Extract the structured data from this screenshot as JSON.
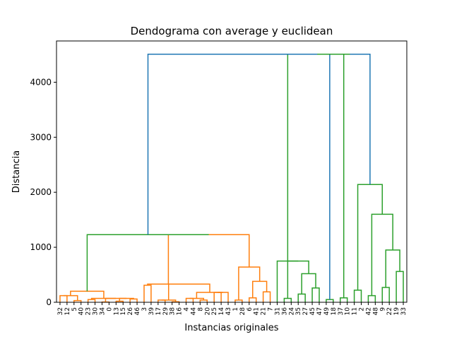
{
  "chart_data": {
    "type": "dendrogram",
    "title": "Dendograma con average y euclidean",
    "xlabel": "Instancias originales",
    "ylabel": "Distancia",
    "ylim": [
      0,
      4750
    ],
    "yticks": [
      0,
      1000,
      2000,
      3000,
      4000
    ],
    "leaves": [
      "32",
      "12",
      "5",
      "40",
      "23",
      "30",
      "34",
      "0",
      "13",
      "15",
      "26",
      "46",
      "3",
      "39",
      "17",
      "29",
      "38",
      "16",
      "4",
      "44",
      "8",
      "20",
      "25",
      "14",
      "43",
      "1",
      "28",
      "6",
      "41",
      "21",
      "7",
      "31",
      "36",
      "24",
      "35",
      "27",
      "45",
      "47",
      "49",
      "18",
      "37",
      "10",
      "11",
      "2",
      "42",
      "48",
      "9",
      "22",
      "19",
      "33"
    ],
    "colors": {
      "cluster_1": "#ff7f0e",
      "cluster_2": "#2ca02c",
      "root": "#1f77b4"
    },
    "links": [
      {
        "l": 0,
        "r": 1,
        "h": 120,
        "c": "cluster_1"
      },
      {
        "l": 2,
        "r": 3,
        "h": 30,
        "c": "cluster_1"
      },
      {
        "l": "A1",
        "r": "A2",
        "h": 60,
        "c": "cluster_1"
      },
      {
        "l": "A3",
        "r": "A4",
        "h": 50,
        "c": "cluster_1"
      },
      {
        "l": "A5",
        "r": "A6",
        "h": 5,
        "c": "cluster_1"
      },
      {
        "l": "A7",
        "r": "A8",
        "h": 20,
        "c": "cluster_1"
      },
      {
        "l": "A9",
        "r": "A10",
        "h": 60,
        "c": "cluster_1"
      },
      {
        "l": "A11",
        "r": "A12",
        "h": 70,
        "c": "cluster_1"
      },
      {
        "l": "A13",
        "r": "A14",
        "h": 30,
        "c": "cluster_1"
      },
      {
        "l": "A15",
        "r": "A16",
        "h": 10,
        "c": "cluster_1"
      },
      {
        "l": "A17",
        "r": "A18",
        "h": 200,
        "c": "cluster_1"
      },
      {
        "l": "A19",
        "r": "A20",
        "h": 310,
        "c": "cluster_1"
      },
      {
        "l": "B1",
        "r": "B2",
        "h": 40,
        "c": "cluster_1"
      },
      {
        "l": "B3",
        "r": "B4",
        "h": 10,
        "c": "cluster_1"
      },
      {
        "l": "B5",
        "r": "B6",
        "h": 5,
        "c": "cluster_1"
      },
      {
        "l": "B7",
        "r": "B8",
        "h": 70,
        "c": "cluster_1"
      },
      {
        "l": "B9",
        "r": "B10",
        "h": 40,
        "c": "cluster_1"
      },
      {
        "l": "B11",
        "r": "B12",
        "h": 60,
        "c": "cluster_1"
      },
      {
        "l": "B13",
        "r": "B14",
        "h": 180,
        "c": "cluster_1"
      },
      {
        "l": "B15",
        "r": "B16",
        "h": 100,
        "c": "cluster_1"
      },
      {
        "l": "B17",
        "r": "B18",
        "h": 30,
        "c": "cluster_1"
      },
      {
        "l": "B19",
        "r": "B20",
        "h": 330,
        "c": "cluster_1"
      },
      {
        "l": "C1",
        "r": "C2",
        "h": 110,
        "c": "cluster_1"
      },
      {
        "l": "C3",
        "r": "C4",
        "h": 40,
        "c": "cluster_1"
      },
      {
        "l": "C5",
        "r": "C6",
        "h": 80,
        "c": "cluster_1"
      },
      {
        "l": "C7",
        "r": "C8",
        "h": 190,
        "c": "cluster_1"
      },
      {
        "l": "C9",
        "r": "C10",
        "h": 380,
        "c": "cluster_1"
      },
      {
        "l": "C11",
        "r": "C12",
        "h": 640,
        "c": "cluster_1"
      },
      {
        "l": "C13",
        "r": "C14",
        "h": 1230,
        "c": "cluster_1"
      },
      {
        "l": "D1",
        "r": "D2",
        "h": 240,
        "c": "cluster_2"
      },
      {
        "l": "D3",
        "r": "D4",
        "h": 70,
        "c": "cluster_2"
      },
      {
        "l": "D5",
        "r": "D6",
        "h": 150,
        "c": "cluster_2"
      },
      {
        "l": "D7",
        "r": "D8",
        "h": 260,
        "c": "cluster_2"
      },
      {
        "l": "D9",
        "r": "D10",
        "h": 520,
        "c": "cluster_2"
      },
      {
        "l": "D11",
        "r": "D12",
        "h": 750,
        "c": "cluster_2"
      },
      {
        "l": "E1",
        "r": "E2",
        "h": 400,
        "c": "cluster_2"
      },
      {
        "l": "E3",
        "r": "E4",
        "h": 50,
        "c": "cluster_2"
      },
      {
        "l": "E5",
        "r": "E6",
        "h": 80,
        "c": "cluster_2"
      },
      {
        "l": "E7",
        "r": "E8",
        "h": 220,
        "c": "cluster_2"
      },
      {
        "l": "E9",
        "r": "E10",
        "h": 120,
        "c": "cluster_2"
      },
      {
        "l": "E11",
        "r": "E12",
        "h": 270,
        "c": "cluster_2"
      },
      {
        "l": "E13",
        "r": "E14",
        "h": 560,
        "c": "cluster_2"
      },
      {
        "l": "E15",
        "r": "E16",
        "h": 950,
        "c": "cluster_2"
      },
      {
        "l": "E17",
        "r": "E18",
        "h": 1600,
        "c": "cluster_2"
      },
      {
        "l": "E19",
        "r": "E20",
        "h": 2140,
        "c": "cluster_2"
      },
      {
        "l": "F1",
        "r": "F2",
        "h": 4510,
        "c": "root"
      }
    ]
  }
}
